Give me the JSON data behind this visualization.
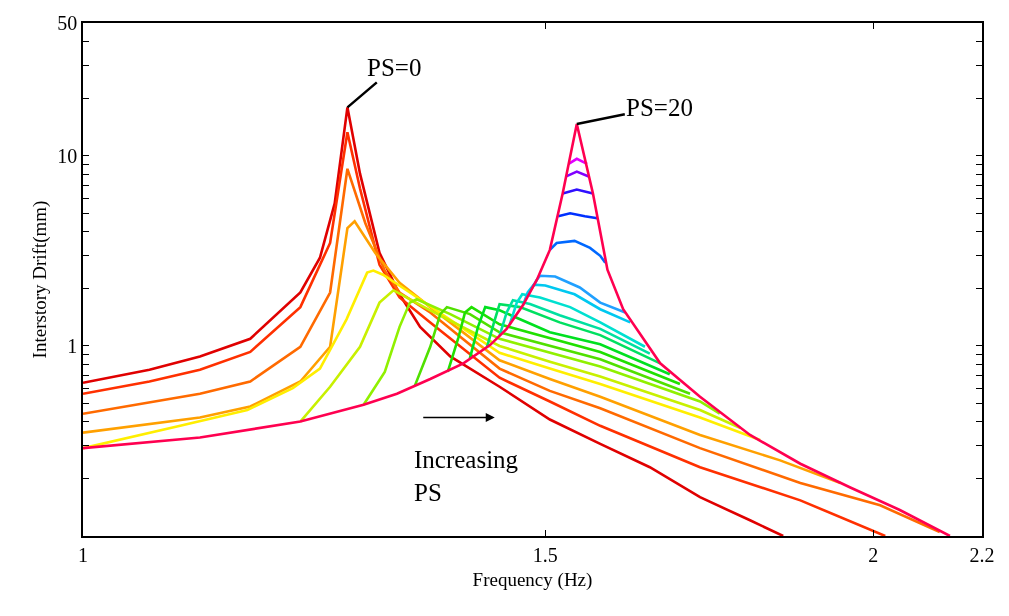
{
  "chart_data": {
    "type": "line",
    "xlabel": "Frequency (Hz)",
    "ylabel": "Interstory Drift(mm)",
    "log": "xy",
    "grid": false,
    "marker": "none",
    "line_style": "solid",
    "xlim": [
      1,
      2.2
    ],
    "xticks": [
      1,
      1.5,
      2,
      2.2
    ],
    "ylim": [
      0.1,
      50
    ],
    "yticks": [
      {
        "value": 0.2,
        "label": null
      },
      {
        "value": 0.3,
        "label": null
      },
      {
        "value": 0.4,
        "label": null
      },
      {
        "value": 0.5,
        "label": null
      },
      {
        "value": 0.6,
        "label": null
      },
      {
        "value": 0.7,
        "label": null
      },
      {
        "value": 0.8,
        "label": null
      },
      {
        "value": 0.9,
        "label": null
      },
      1,
      {
        "value": 2,
        "label": null
      },
      {
        "value": 3,
        "label": null
      },
      {
        "value": 4,
        "label": null
      },
      {
        "value": 5,
        "label": null
      },
      {
        "value": 6,
        "label": null
      },
      {
        "value": 7,
        "label": null
      },
      {
        "value": 8,
        "label": null
      },
      {
        "value": 9,
        "label": null
      },
      10,
      {
        "value": 20,
        "label": null
      },
      {
        "value": 30,
        "label": null
      },
      {
        "value": 40,
        "label": null
      },
      50
    ],
    "annotations": [
      {
        "text": "PS=0",
        "x": 1.261,
        "y": 18.0
      },
      {
        "text": "PS=20",
        "x": 1.542,
        "y": 14.7
      },
      "Increasing\nPS"
    ],
    "series": [
      {
        "color": "#e00000",
        "x": [
          1,
          1.06,
          1.108,
          1.158,
          1.21,
          1.231,
          1.247,
          1.261,
          1.275,
          1.297,
          1.32,
          1.344,
          1.38,
          1.441,
          1.506,
          1.574,
          1.644,
          1.718,
          1.795,
          1.848
        ],
        "values": [
          0.64,
          0.75,
          0.88,
          1.09,
          1.91,
          2.91,
          5.62,
          18.0,
          8.06,
          3.09,
          1.87,
          1.26,
          0.88,
          0.61,
          0.41,
          0.305,
          0.23,
          0.16,
          0.121,
          0.1
        ]
      },
      {
        "color": "#ff3000",
        "x": [
          1,
          1.06,
          1.108,
          1.158,
          1.21,
          1.242,
          1.261,
          1.275,
          1.297,
          1.32,
          1.356,
          1.441,
          1.506,
          1.574,
          1.718,
          1.876,
          2.021
        ],
        "values": [
          0.56,
          0.65,
          0.75,
          0.93,
          1.6,
          3.48,
          13.3,
          6.73,
          2.67,
          1.8,
          1.33,
          0.68,
          0.51,
          0.38,
          0.23,
          0.154,
          0.1
        ]
      },
      {
        "color": "#ff6a00",
        "x": [
          1,
          1.108,
          1.158,
          1.21,
          1.242,
          1.261,
          1.281,
          1.303,
          1.32,
          1.356,
          1.441,
          1.506,
          1.574,
          1.718,
          1.876,
          2.012,
          2.12
        ],
        "values": [
          0.44,
          0.56,
          0.65,
          0.99,
          1.91,
          8.55,
          4.42,
          2.49,
          1.91,
          1.5,
          0.76,
          0.58,
          0.47,
          0.29,
          0.19,
          0.145,
          0.105
        ]
      },
      {
        "color": "#ffa000",
        "x": [
          1,
          1.108,
          1.158,
          1.21,
          1.242,
          1.261,
          1.269,
          1.292,
          1.32,
          1.356,
          1.441,
          1.506,
          1.574,
          1.718,
          1.843,
          1.943
        ],
        "values": [
          0.35,
          0.42,
          0.48,
          0.65,
          0.99,
          4.17,
          4.53,
          3.09,
          2.15,
          1.6,
          0.84,
          0.67,
          0.54,
          0.34,
          0.25,
          0.19
        ]
      },
      {
        "color": "#ffee00",
        "x": [
          1,
          1.089,
          1.155,
          1.202,
          1.231,
          1.26,
          1.283,
          1.29,
          1.301,
          1.332,
          1.38,
          1.441,
          1.506,
          1.574,
          1.718,
          1.811
        ],
        "values": [
          0.29,
          0.38,
          0.46,
          0.6,
          0.76,
          1.38,
          2.43,
          2.49,
          2.37,
          1.91,
          1.37,
          0.92,
          0.76,
          0.63,
          0.42,
          0.32
        ]
      },
      {
        "color": "#c8f000",
        "x": [
          1.21,
          1.242,
          1.275,
          1.297,
          1.313,
          1.356,
          1.441,
          1.506,
          1.574,
          1.718,
          1.78
        ],
        "values": [
          0.4,
          0.61,
          0.99,
          1.69,
          1.96,
          1.54,
          1.0,
          0.825,
          0.69,
          0.46,
          0.37
        ]
      },
      {
        "color": "#90f000",
        "x": [
          1.279,
          1.303,
          1.32,
          1.332,
          1.34,
          1.38,
          1.441,
          1.574,
          1.718,
          1.748
        ],
        "values": [
          0.49,
          0.73,
          1.26,
          1.69,
          1.76,
          1.47,
          1.09,
          0.78,
          0.51,
          0.44
        ]
      },
      {
        "color": "#50e000",
        "x": [
          1.338,
          1.356,
          1.368,
          1.376,
          1.404,
          1.441,
          1.574,
          1.703
        ],
        "values": [
          0.62,
          0.99,
          1.47,
          1.6,
          1.47,
          1.18,
          0.85,
          0.56
        ]
      },
      {
        "color": "#20e000",
        "x": [
          1.377,
          1.39,
          1.398,
          1.406,
          1.441,
          1.574,
          1.688
        ],
        "values": [
          0.73,
          1.11,
          1.5,
          1.6,
          1.3,
          0.93,
          0.63
        ]
      },
      {
        "color": "#00e020",
        "x": [
          1.404,
          1.414,
          1.423,
          1.441,
          1.506,
          1.574,
          1.673
        ],
        "values": [
          0.86,
          1.26,
          1.6,
          1.54,
          1.18,
          1.02,
          0.71
        ]
      },
      {
        "color": "#00e060",
        "x": [
          1.425,
          1.434,
          1.441,
          1.467,
          1.519,
          1.574,
          1.659
        ],
        "values": [
          0.98,
          1.33,
          1.66,
          1.6,
          1.33,
          1.14,
          0.81
        ]
      },
      {
        "color": "#00e0a0",
        "x": [
          1.441,
          1.45,
          1.458,
          1.48,
          1.519,
          1.574,
          1.644
        ],
        "values": [
          1.13,
          1.5,
          1.74,
          1.66,
          1.45,
          1.23,
          0.91
        ]
      },
      {
        "color": "#00e0d0",
        "x": [
          1.454,
          1.463,
          1.47,
          1.493,
          1.533,
          1.574,
          1.637
        ],
        "values": [
          1.3,
          1.69,
          1.87,
          1.8,
          1.6,
          1.33,
          0.99
        ]
      },
      {
        "color": "#00c8f0",
        "x": [
          1.471,
          1.477,
          1.485,
          1.5,
          1.539,
          1.574,
          1.616
        ],
        "values": [
          1.64,
          1.91,
          2.1,
          2.08,
          1.87,
          1.56,
          1.33
        ]
      },
      {
        "color": "#20a0ff",
        "x": [
          1.482,
          1.489,
          1.493,
          1.513,
          1.546,
          1.574,
          1.609
        ],
        "values": [
          2.0,
          2.23,
          2.34,
          2.32,
          2.03,
          1.69,
          1.5
        ]
      },
      {
        "color": "#0068ff",
        "x": [
          1.506,
          1.515,
          1.539,
          1.56,
          1.574,
          1.581
        ],
        "values": [
          3.2,
          3.48,
          3.57,
          3.28,
          2.98,
          2.74
        ]
      },
      {
        "color": "#0030ff",
        "x": [
          1.517,
          1.533,
          1.553,
          1.57
        ],
        "values": [
          4.81,
          4.99,
          4.81,
          4.7
        ]
      },
      {
        "color": "#3010ff",
        "x": [
          1.523,
          1.542,
          1.564
        ],
        "values": [
          6.34,
          6.65,
          6.34
        ]
      },
      {
        "color": "#8000ff",
        "x": [
          1.527,
          1.542,
          1.559
        ],
        "values": [
          7.77,
          8.26,
          7.77
        ]
      },
      {
        "color": "#e000ff",
        "x": [
          1.531,
          1.542,
          1.556
        ],
        "values": [
          9.08,
          9.65,
          9.08
        ]
      },
      {
        "color": "#ff0050",
        "x": [
          1,
          1.108,
          1.21,
          1.279,
          1.317,
          1.356,
          1.396,
          1.429,
          1.45,
          1.471,
          1.489,
          1.506,
          1.523,
          1.542,
          1.564,
          1.584,
          1.606,
          1.659,
          1.718,
          1.795,
          1.876,
          1.96,
          2.047,
          2.139
        ],
        "values": [
          0.29,
          0.33,
          0.4,
          0.49,
          0.56,
          0.67,
          0.81,
          1.01,
          1.23,
          1.64,
          2.23,
          3.2,
          6.34,
          14.7,
          6.34,
          2.52,
          1.56,
          0.81,
          0.54,
          0.34,
          0.24,
          0.18,
          0.137,
          0.1
        ]
      }
    ]
  }
}
